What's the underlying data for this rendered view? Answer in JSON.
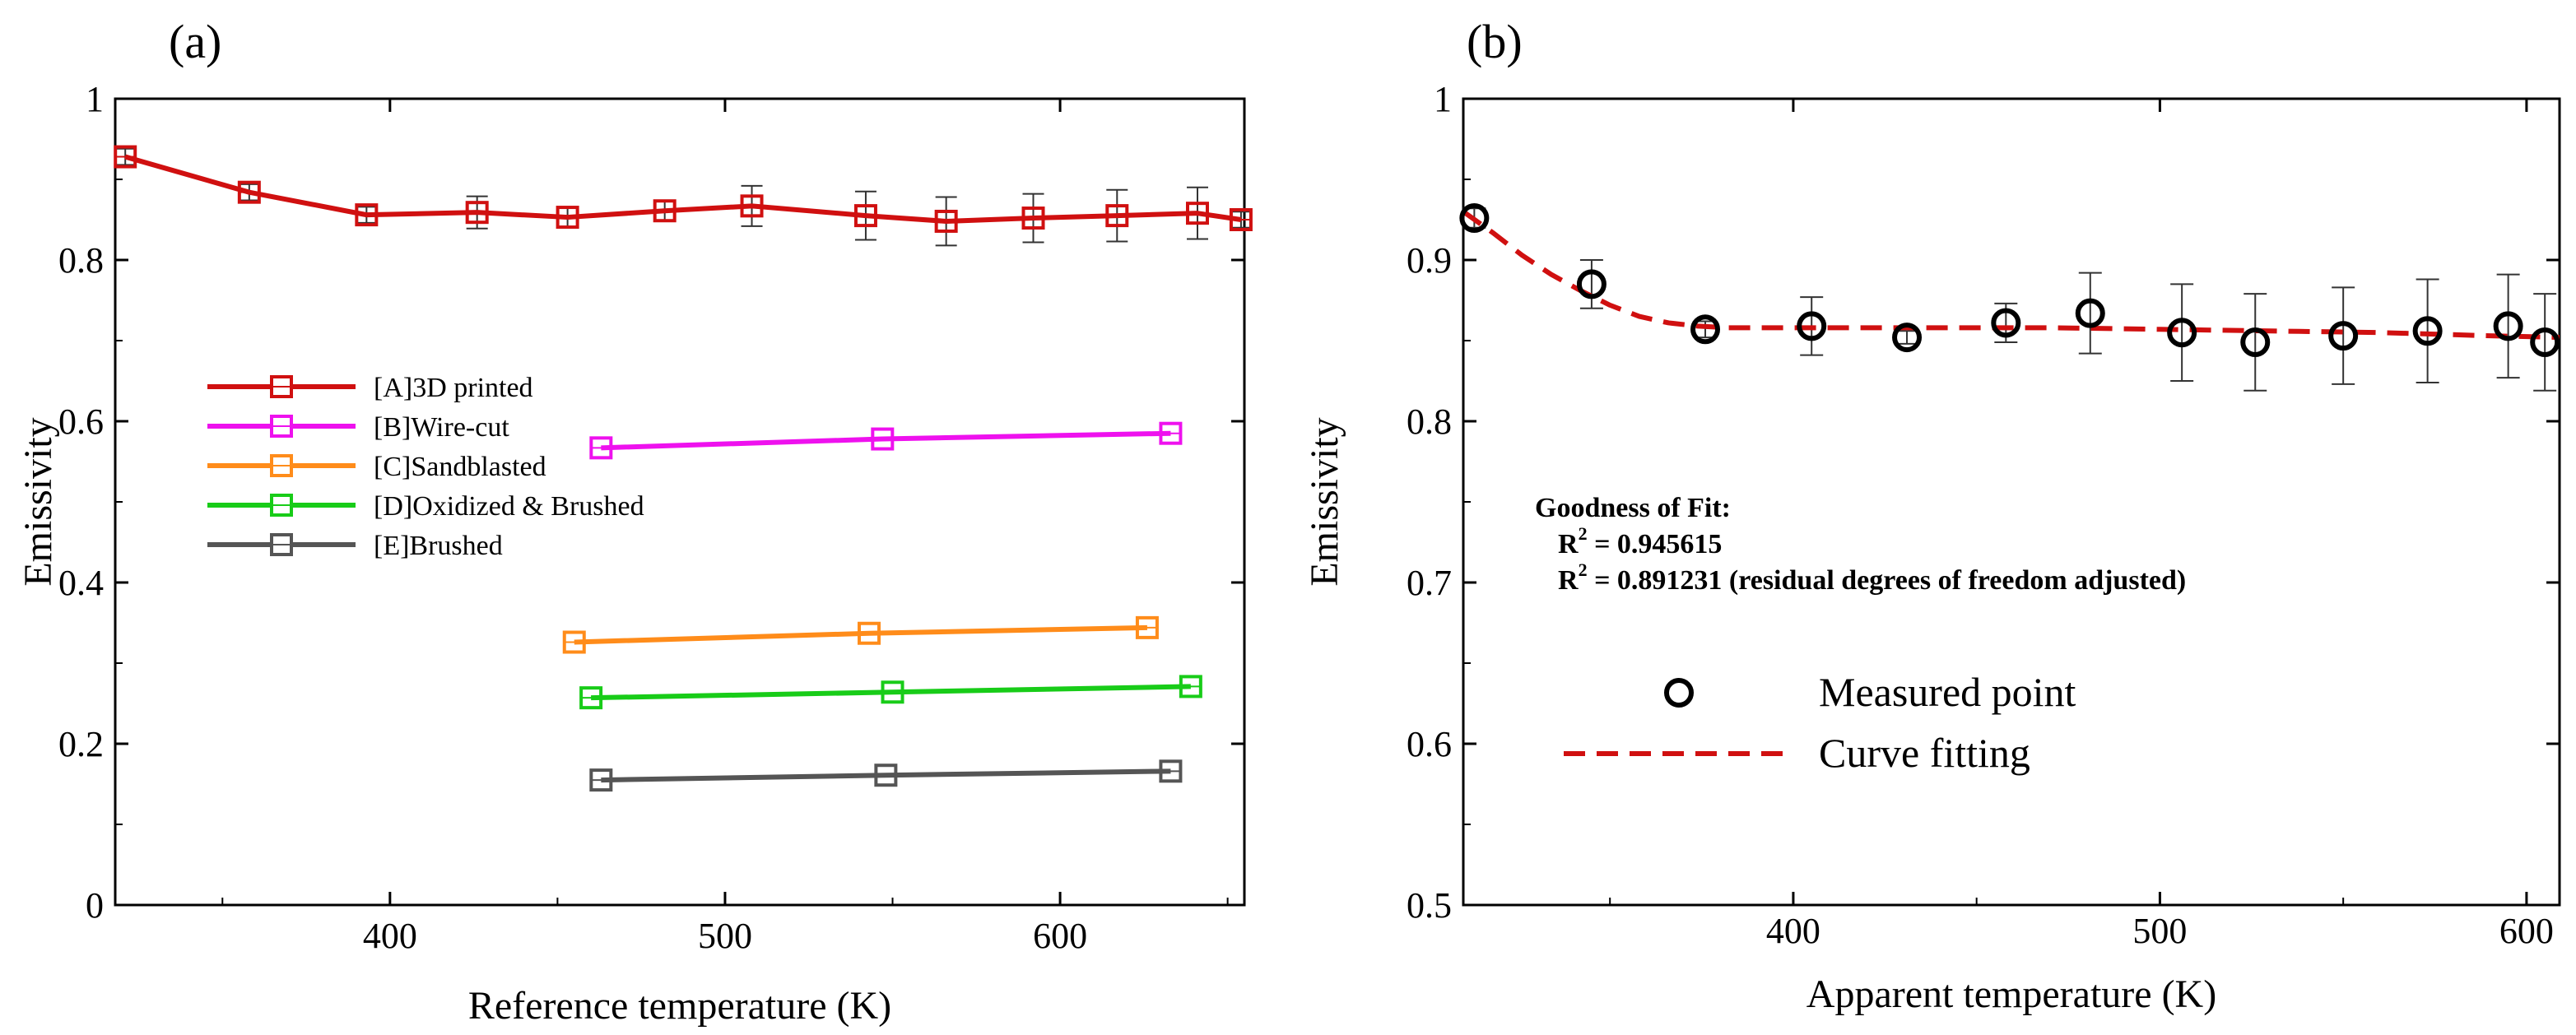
{
  "chart_data": [
    {
      "panel": "(a)",
      "type": "line",
      "xlabel": "Reference temperature (K)",
      "ylabel": "Emissivity",
      "xlim": [
        318,
        655
      ],
      "ylim": [
        0,
        1
      ],
      "xticks": [
        400,
        500,
        600
      ],
      "yticks": [
        0,
        0.2,
        0.4,
        0.6,
        0.8,
        1
      ],
      "xtick_labels": [
        "400",
        "500",
        "600"
      ],
      "ytick_labels": [
        "0",
        "0.2",
        "0.4",
        "0.6",
        "0.8",
        "1"
      ],
      "legend_position": "center-left",
      "series": [
        {
          "name": "[A]3D printed",
          "color": "#d01010",
          "x": [
            321,
            358,
            393,
            426,
            453,
            482,
            508,
            542,
            566,
            592,
            617,
            641,
            654
          ],
          "y": [
            0.928,
            0.884,
            0.856,
            0.859,
            0.853,
            0.861,
            0.867,
            0.855,
            0.848,
            0.852,
            0.855,
            0.858,
            0.85
          ],
          "err": [
            0.01,
            0.01,
            0.01,
            0.02,
            0.012,
            0.012,
            0.025,
            0.03,
            0.03,
            0.03,
            0.032,
            0.032,
            0.01
          ]
        },
        {
          "name": "[B]Wire-cut",
          "color": "#ee11ee",
          "x": [
            463,
            547,
            633
          ],
          "y": [
            0.567,
            0.578,
            0.585
          ]
        },
        {
          "name": "[C]Sandblasted",
          "color": "#ff8c1a",
          "x": [
            455,
            543,
            626
          ],
          "y": [
            0.326,
            0.337,
            0.344
          ]
        },
        {
          "name": "[D]Oxidized & Brushed",
          "color": "#18cc18",
          "x": [
            460,
            550,
            639
          ],
          "y": [
            0.257,
            0.264,
            0.271
          ]
        },
        {
          "name": "[E]Brushed",
          "color": "#555555",
          "x": [
            463,
            548,
            633
          ],
          "y": [
            0.155,
            0.161,
            0.166
          ]
        }
      ]
    },
    {
      "panel": "(b)",
      "type": "scatter",
      "xlabel": "Apparent temperature (K)",
      "ylabel": "Emissivity",
      "xlim": [
        310,
        609
      ],
      "ylim": [
        0.5,
        1
      ],
      "xticks": [
        400,
        500,
        600
      ],
      "yticks": [
        0.5,
        0.6,
        0.7,
        0.8,
        0.9,
        1
      ],
      "xtick_labels": [
        "400",
        "500",
        "600"
      ],
      "ytick_labels": [
        "0.5",
        "0.6",
        "0.7",
        "0.8",
        "0.9",
        "1"
      ],
      "legend_position": "lower-center",
      "series": [
        {
          "name": "Measured point",
          "color": "#000000",
          "x": [
            313,
            345,
            376,
            405,
            431,
            458,
            481,
            506,
            526,
            550,
            573,
            595,
            605
          ],
          "y": [
            0.926,
            0.885,
            0.857,
            0.859,
            0.852,
            0.861,
            0.867,
            0.855,
            0.849,
            0.853,
            0.856,
            0.859,
            0.849
          ],
          "err": [
            0.006,
            0.015,
            0.005,
            0.018,
            0.004,
            0.012,
            0.025,
            0.03,
            0.03,
            0.03,
            0.032,
            0.032,
            0.03
          ]
        },
        {
          "name": "Curve fitting",
          "color": "#d01010",
          "x": [
            310,
            318,
            326,
            334,
            342,
            350,
            358,
            366,
            374,
            382,
            392,
            410,
            440,
            470,
            500,
            530,
            560,
            590,
            609
          ],
          "y": [
            0.93,
            0.917,
            0.903,
            0.891,
            0.881,
            0.872,
            0.865,
            0.861,
            0.859,
            0.858,
            0.858,
            0.858,
            0.858,
            0.858,
            0.857,
            0.856,
            0.855,
            0.853,
            0.852
          ]
        }
      ],
      "annotation": {
        "title": "Goodness of Fit:",
        "line1_prefix": "R",
        "line1_sup": "2",
        "line1_value": " = 0.945615",
        "line2_prefix": "R",
        "line2_sup": "2",
        "line2_value": " = 0.891231 (residual degrees of freedom adjusted)"
      }
    }
  ]
}
